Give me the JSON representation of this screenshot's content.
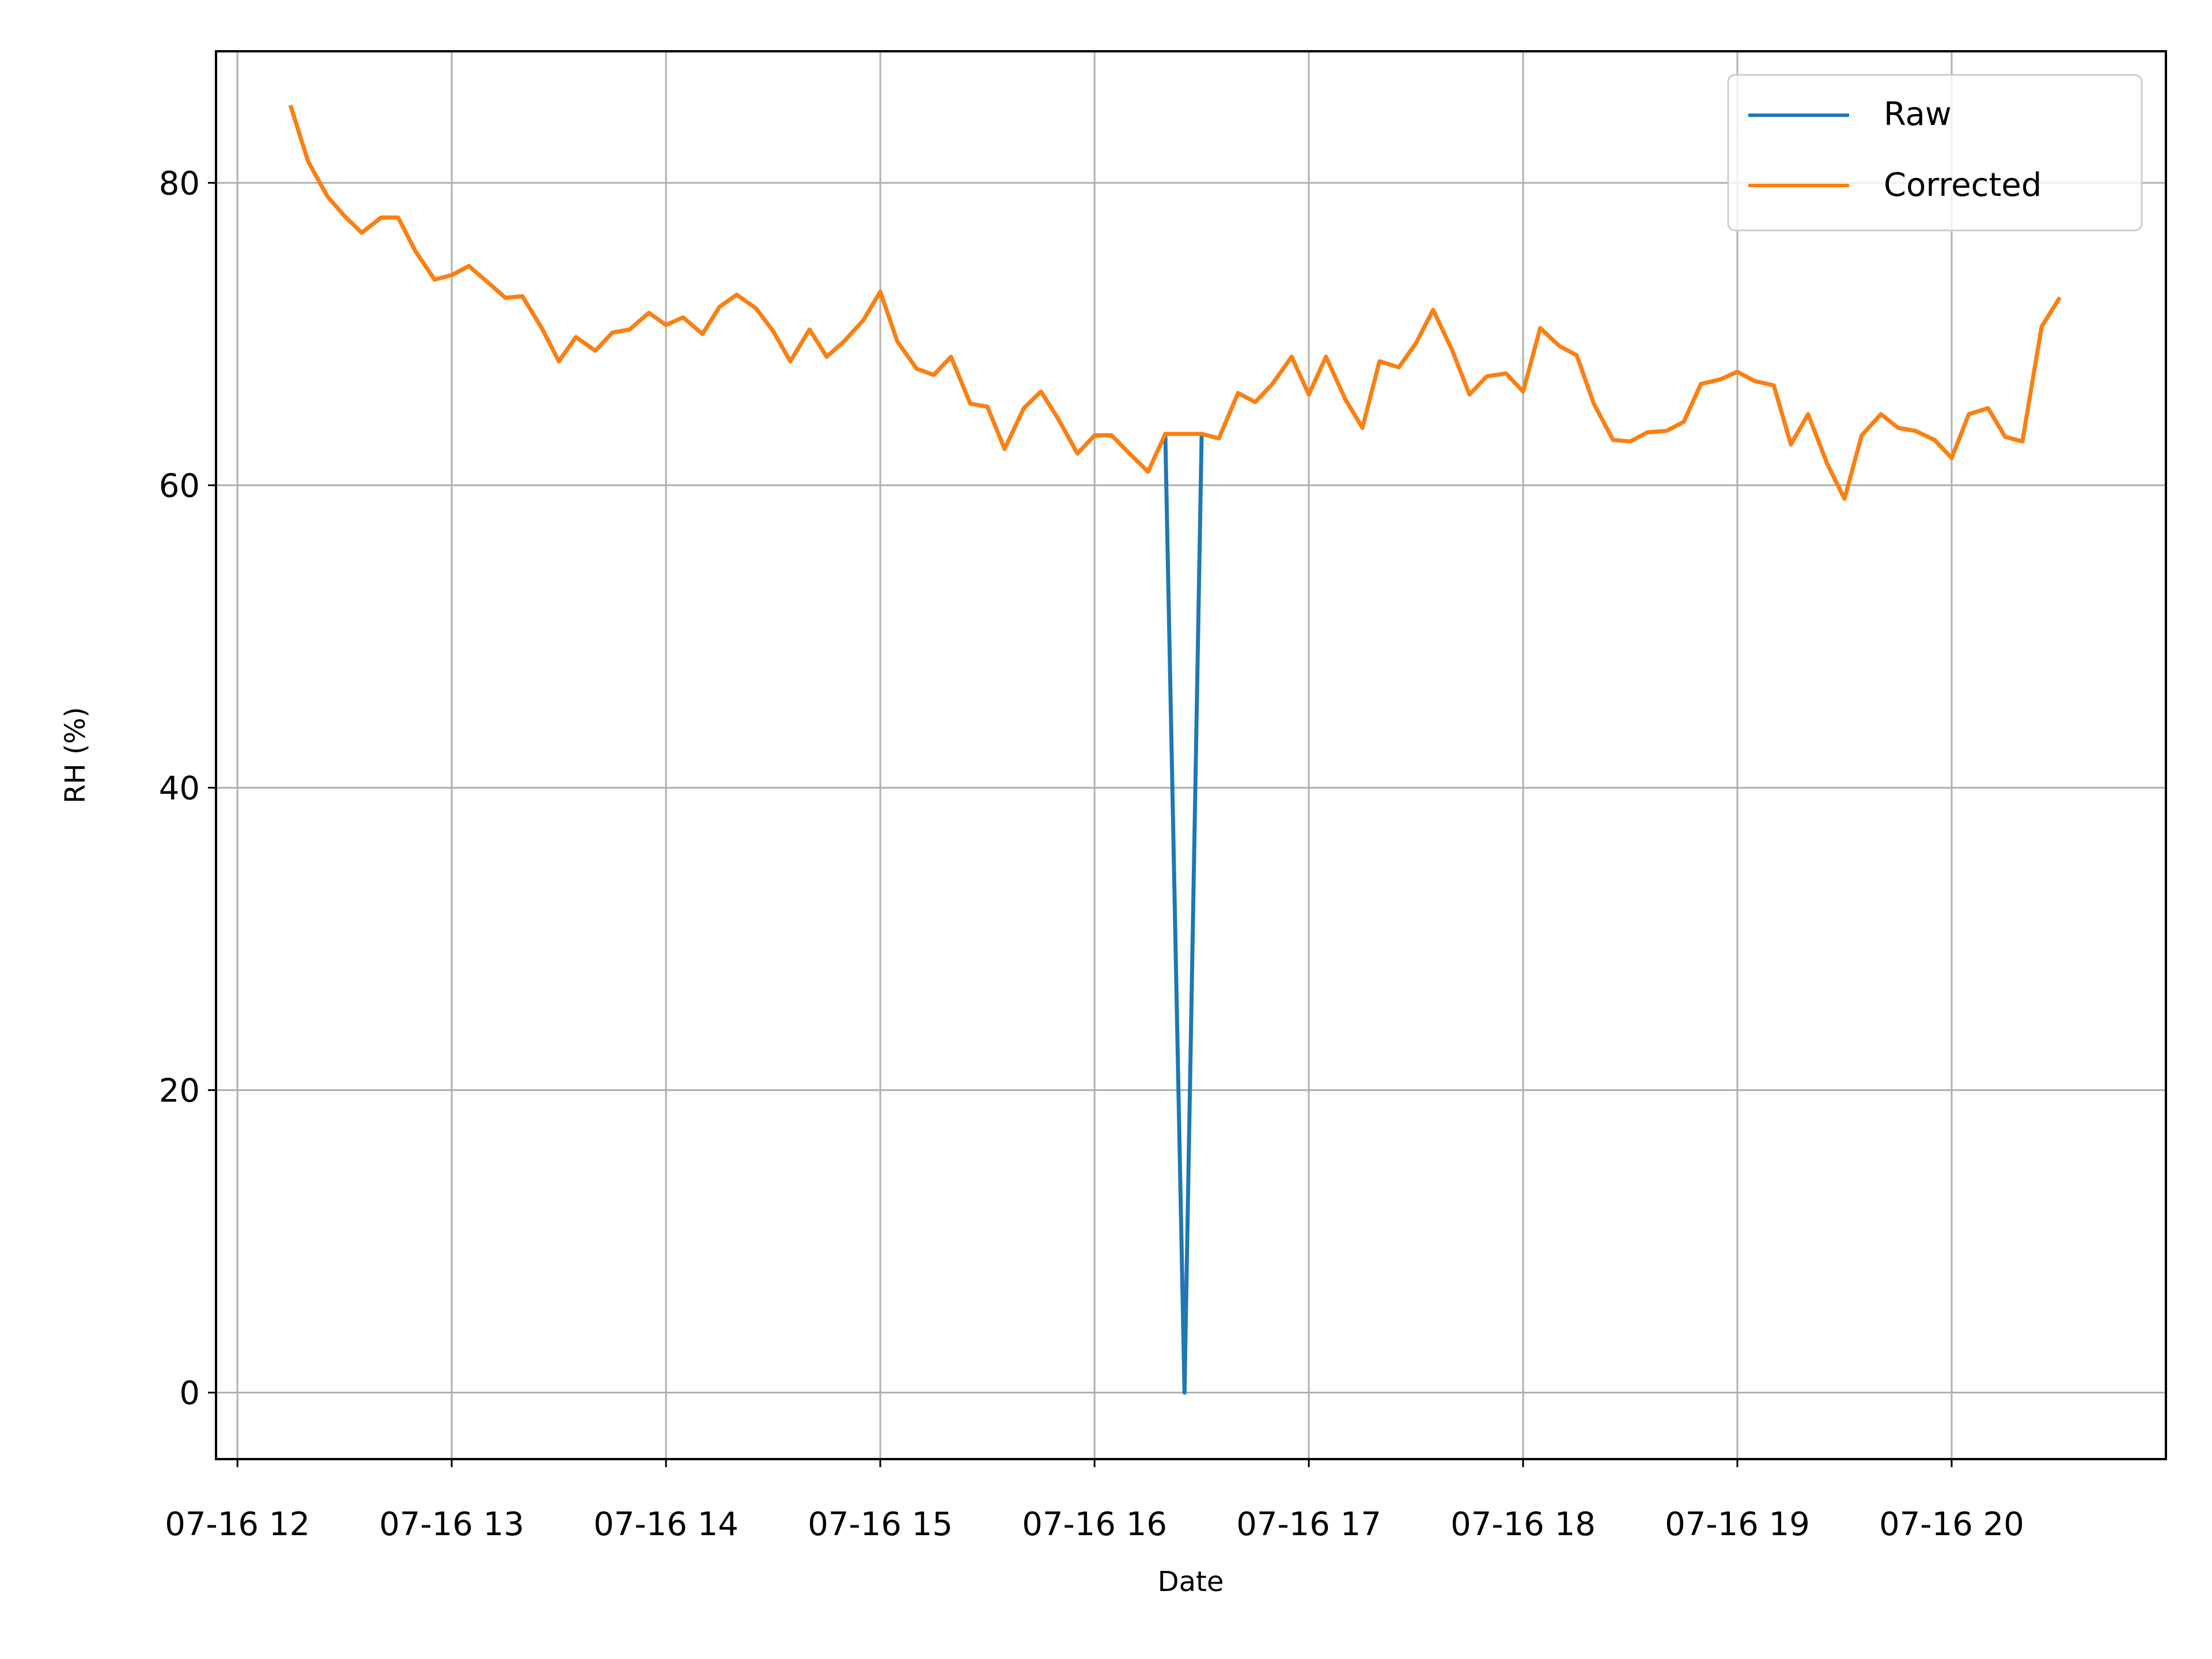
{
  "chart_data": {
    "type": "line",
    "title": "",
    "xlabel": "Date",
    "ylabel": "RH (%)",
    "xlim": [
      11.9,
      21.0
    ],
    "ylim": [
      -4.4,
      88.7
    ],
    "x_ticks": [
      {
        "value": 12,
        "label": "07-16 12"
      },
      {
        "value": 13,
        "label": "07-16 13"
      },
      {
        "value": 14,
        "label": "07-16 14"
      },
      {
        "value": 15,
        "label": "07-16 15"
      },
      {
        "value": 16,
        "label": "07-16 16"
      },
      {
        "value": 17,
        "label": "07-16 17"
      },
      {
        "value": 18,
        "label": "07-16 18"
      },
      {
        "value": 19,
        "label": "07-16 19"
      },
      {
        "value": 20,
        "label": "07-16 20"
      }
    ],
    "x_tick_labels_rendered": [
      "07-16 12",
      "07-16 13",
      "07-16 14",
      "07-16 15",
      "07-16 16",
      "07-16 17",
      "07-16 18",
      "07-16 19",
      "07-16 20"
    ],
    "y_ticks": [
      {
        "value": 0,
        "label": "0"
      },
      {
        "value": 20,
        "label": "20"
      },
      {
        "value": 40,
        "label": "40"
      },
      {
        "value": 60,
        "label": "60"
      },
      {
        "value": 80,
        "label": "80"
      }
    ],
    "grid": true,
    "legend_position": "top-right",
    "x": [
      12.25,
      12.33,
      12.42,
      12.5,
      12.58,
      12.67,
      12.75,
      12.83,
      12.92,
      13.0,
      13.08,
      13.17,
      13.25,
      13.33,
      13.42,
      13.5,
      13.58,
      13.67,
      13.75,
      13.83,
      13.92,
      14.0,
      14.08,
      14.17,
      14.25,
      14.33,
      14.42,
      14.5,
      14.58,
      14.67,
      14.75,
      14.83,
      14.92,
      15.0,
      15.08,
      15.17,
      15.25,
      15.33,
      15.42,
      15.5,
      15.58,
      15.67,
      15.75,
      15.83,
      15.92,
      16.0,
      16.08,
      16.17,
      16.25,
      16.33,
      16.42,
      16.5,
      16.58,
      16.67,
      16.75,
      16.83,
      16.92,
      17.0,
      17.08,
      17.17,
      17.25,
      17.33,
      17.42,
      17.5,
      17.58,
      17.67,
      17.75,
      17.83,
      17.92,
      18.0,
      18.08,
      18.17,
      18.25,
      18.33,
      18.42,
      18.5,
      18.58,
      18.67,
      18.75,
      18.83,
      18.92,
      19.0,
      19.08,
      19.17,
      19.25,
      19.33,
      19.42,
      19.5,
      19.58,
      19.67,
      19.75,
      19.83,
      19.92,
      20.0,
      20.08,
      20.17,
      20.25,
      20.33,
      20.42,
      20.5
    ],
    "series": [
      {
        "name": "Raw",
        "color": "#1f77b4",
        "values": [
          85.0,
          81.4,
          79.1,
          77.8,
          76.7,
          77.7,
          77.7,
          75.5,
          73.6,
          73.9,
          74.5,
          73.4,
          72.4,
          72.5,
          70.4,
          68.2,
          69.8,
          68.9,
          70.1,
          70.3,
          71.4,
          70.6,
          71.1,
          70.0,
          71.8,
          72.6,
          71.7,
          70.2,
          68.2,
          70.3,
          68.5,
          69.5,
          70.9,
          72.8,
          69.5,
          67.7,
          67.3,
          68.5,
          65.4,
          65.2,
          62.4,
          65.1,
          66.2,
          64.4,
          62.1,
          63.3,
          63.3,
          62.0,
          60.9,
          63.4,
          0.0,
          63.4,
          63.1,
          66.1,
          65.5,
          66.7,
          68.5,
          66.0,
          68.5,
          65.7,
          63.8,
          68.2,
          67.8,
          69.4,
          71.6,
          68.9,
          66.0,
          67.2,
          67.4,
          66.2,
          70.4,
          69.2,
          68.6,
          65.4,
          63.0,
          62.9,
          63.5,
          63.6,
          64.2,
          66.7,
          67.0,
          67.5,
          66.9,
          66.6,
          62.7,
          64.7,
          61.4,
          59.1,
          63.3,
          64.7,
          63.8,
          63.6,
          63.0,
          61.8,
          64.7,
          65.1,
          63.2,
          62.9,
          70.5,
          72.3
        ]
      },
      {
        "name": "Corrected",
        "color": "#ff7f0e",
        "values": [
          85.0,
          81.4,
          79.1,
          77.8,
          76.7,
          77.7,
          77.7,
          75.5,
          73.6,
          73.9,
          74.5,
          73.4,
          72.4,
          72.5,
          70.4,
          68.2,
          69.8,
          68.9,
          70.1,
          70.3,
          71.4,
          70.6,
          71.1,
          70.0,
          71.8,
          72.6,
          71.7,
          70.2,
          68.2,
          70.3,
          68.5,
          69.5,
          70.9,
          72.8,
          69.5,
          67.7,
          67.3,
          68.5,
          65.4,
          65.2,
          62.4,
          65.1,
          66.2,
          64.4,
          62.1,
          63.3,
          63.3,
          62.0,
          60.9,
          63.4,
          63.4,
          63.4,
          63.1,
          66.1,
          65.5,
          66.7,
          68.5,
          66.0,
          68.5,
          65.7,
          63.8,
          68.2,
          67.8,
          69.4,
          71.6,
          68.9,
          66.0,
          67.2,
          67.4,
          66.2,
          70.4,
          69.2,
          68.6,
          65.4,
          63.0,
          62.9,
          63.5,
          63.6,
          64.2,
          66.7,
          67.0,
          67.5,
          66.9,
          66.6,
          62.7,
          64.7,
          61.4,
          59.1,
          63.3,
          64.7,
          63.8,
          63.6,
          63.0,
          61.8,
          64.7,
          65.1,
          63.2,
          62.9,
          70.5,
          72.3
        ]
      }
    ],
    "legend": [
      {
        "label": "Raw",
        "color": "#1f77b4"
      },
      {
        "label": "Corrected",
        "color": "#ff7f0e"
      }
    ],
    "colors": {
      "grid": "#b0b0b0",
      "axes": "#000000",
      "background": "#ffffff",
      "legend_border": "#cccccc"
    }
  }
}
